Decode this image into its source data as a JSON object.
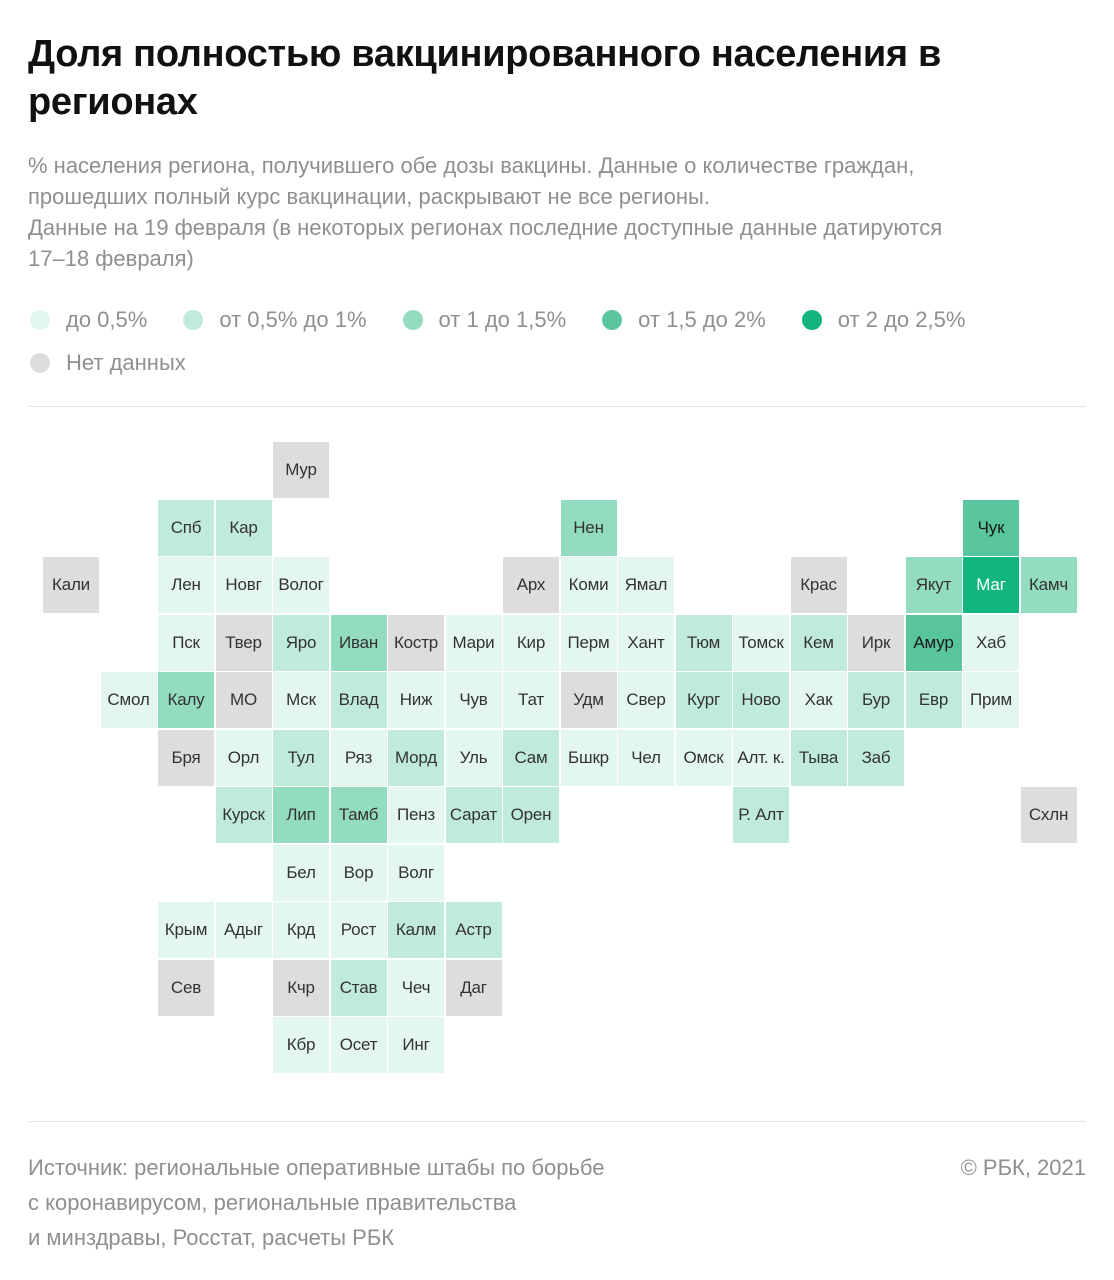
{
  "header": {
    "title": "Доля полностью вакцинированного населения в регионах",
    "subtitle_lines": [
      "% населения региона, получившего обе дозы вакцины. Данные о количестве граждан,",
      "прошедших полный курс вакцинации, раскрывают не все регионы.",
      "Данные на 19 февраля (в некоторых регионах последние доступные данные датируются",
      "17–18 февраля)"
    ]
  },
  "legend": {
    "items": [
      {
        "key": "c1",
        "label": "до 0,5%",
        "color": "#e3f6ef"
      },
      {
        "key": "c2",
        "label": "от 0,5% до 1%",
        "color": "#c0ebda"
      },
      {
        "key": "c3",
        "label": "от 1 до 1,5%",
        "color": "#94dcc0"
      },
      {
        "key": "c4",
        "label": "от 1,5 до 2%",
        "color": "#58c59c"
      },
      {
        "key": "c5",
        "label": "от 2 до 2,5%",
        "color": "#13b57f"
      },
      {
        "key": "na",
        "label": "Нет данных",
        "color": "#dddddd"
      }
    ]
  },
  "chart_data": {
    "type": "heatmap",
    "categories": [
      "до 0,5%",
      "от 0,5% до 1%",
      "от 1 до 1,5%",
      "от 1,5 до 2%",
      "от 2 до 2,5%",
      "Нет данных"
    ],
    "regions": [
      {
        "label": "Мур",
        "col": 5,
        "row": 0,
        "cat": "na"
      },
      {
        "label": "Спб",
        "col": 3,
        "row": 1,
        "cat": "c2"
      },
      {
        "label": "Кар",
        "col": 4,
        "row": 1,
        "cat": "c2"
      },
      {
        "label": "Нен",
        "col": 10,
        "row": 1,
        "cat": "c3"
      },
      {
        "label": "Чук",
        "col": 17,
        "row": 1,
        "cat": "c4"
      },
      {
        "label": "Кали",
        "col": 1,
        "row": 2,
        "cat": "na"
      },
      {
        "label": "Лен",
        "col": 3,
        "row": 2,
        "cat": "c1"
      },
      {
        "label": "Новг",
        "col": 4,
        "row": 2,
        "cat": "c1"
      },
      {
        "label": "Волог",
        "col": 5,
        "row": 2,
        "cat": "c1"
      },
      {
        "label": "Арх",
        "col": 9,
        "row": 2,
        "cat": "na"
      },
      {
        "label": "Коми",
        "col": 10,
        "row": 2,
        "cat": "c1"
      },
      {
        "label": "Ямал",
        "col": 11,
        "row": 2,
        "cat": "c1"
      },
      {
        "label": "Крас",
        "col": 14,
        "row": 2,
        "cat": "na"
      },
      {
        "label": "Якут",
        "col": 16,
        "row": 2,
        "cat": "c3"
      },
      {
        "label": "Маг",
        "col": 17,
        "row": 2,
        "cat": "c5"
      },
      {
        "label": "Камч",
        "col": 18,
        "row": 2,
        "cat": "c3"
      },
      {
        "label": "Пск",
        "col": 3,
        "row": 3,
        "cat": "c1"
      },
      {
        "label": "Твер",
        "col": 4,
        "row": 3,
        "cat": "na"
      },
      {
        "label": "Яро",
        "col": 5,
        "row": 3,
        "cat": "c2"
      },
      {
        "label": "Иван",
        "col": 6,
        "row": 3,
        "cat": "c3"
      },
      {
        "label": "Костр",
        "col": 7,
        "row": 3,
        "cat": "na"
      },
      {
        "label": "Мари",
        "col": 8,
        "row": 3,
        "cat": "c1"
      },
      {
        "label": "Кир",
        "col": 9,
        "row": 3,
        "cat": "c1"
      },
      {
        "label": "Перм",
        "col": 10,
        "row": 3,
        "cat": "c1"
      },
      {
        "label": "Хант",
        "col": 11,
        "row": 3,
        "cat": "c1"
      },
      {
        "label": "Тюм",
        "col": 12,
        "row": 3,
        "cat": "c2"
      },
      {
        "label": "Томск",
        "col": 13,
        "row": 3,
        "cat": "c1"
      },
      {
        "label": "Кем",
        "col": 14,
        "row": 3,
        "cat": "c2"
      },
      {
        "label": "Ирк",
        "col": 15,
        "row": 3,
        "cat": "na"
      },
      {
        "label": "Амур",
        "col": 16,
        "row": 3,
        "cat": "c4"
      },
      {
        "label": "Хаб",
        "col": 17,
        "row": 3,
        "cat": "c1"
      },
      {
        "label": "Смол",
        "col": 2,
        "row": 4,
        "cat": "c1"
      },
      {
        "label": "Калу",
        "col": 3,
        "row": 4,
        "cat": "c3"
      },
      {
        "label": "МО",
        "col": 4,
        "row": 4,
        "cat": "na"
      },
      {
        "label": "Мск",
        "col": 5,
        "row": 4,
        "cat": "c1"
      },
      {
        "label": "Влад",
        "col": 6,
        "row": 4,
        "cat": "c2"
      },
      {
        "label": "Ниж",
        "col": 7,
        "row": 4,
        "cat": "c1"
      },
      {
        "label": "Чув",
        "col": 8,
        "row": 4,
        "cat": "c1"
      },
      {
        "label": "Тат",
        "col": 9,
        "row": 4,
        "cat": "c1"
      },
      {
        "label": "Удм",
        "col": 10,
        "row": 4,
        "cat": "na"
      },
      {
        "label": "Свер",
        "col": 11,
        "row": 4,
        "cat": "c1"
      },
      {
        "label": "Кург",
        "col": 12,
        "row": 4,
        "cat": "c2"
      },
      {
        "label": "Ново",
        "col": 13,
        "row": 4,
        "cat": "c2"
      },
      {
        "label": "Хак",
        "col": 14,
        "row": 4,
        "cat": "c1"
      },
      {
        "label": "Бур",
        "col": 15,
        "row": 4,
        "cat": "c2"
      },
      {
        "label": "Евр",
        "col": 16,
        "row": 4,
        "cat": "c2"
      },
      {
        "label": "Прим",
        "col": 17,
        "row": 4,
        "cat": "c1"
      },
      {
        "label": "Бря",
        "col": 3,
        "row": 5,
        "cat": "na"
      },
      {
        "label": "Орл",
        "col": 4,
        "row": 5,
        "cat": "c1"
      },
      {
        "label": "Тул",
        "col": 5,
        "row": 5,
        "cat": "c2"
      },
      {
        "label": "Ряз",
        "col": 6,
        "row": 5,
        "cat": "c1"
      },
      {
        "label": "Морд",
        "col": 7,
        "row": 5,
        "cat": "c2"
      },
      {
        "label": "Уль",
        "col": 8,
        "row": 5,
        "cat": "c1"
      },
      {
        "label": "Сам",
        "col": 9,
        "row": 5,
        "cat": "c2"
      },
      {
        "label": "Бшкр",
        "col": 10,
        "row": 5,
        "cat": "c1"
      },
      {
        "label": "Чел",
        "col": 11,
        "row": 5,
        "cat": "c1"
      },
      {
        "label": "Омск",
        "col": 12,
        "row": 5,
        "cat": "c1"
      },
      {
        "label": "Алт. к.",
        "col": 13,
        "row": 5,
        "cat": "c1"
      },
      {
        "label": "Тыва",
        "col": 14,
        "row": 5,
        "cat": "c2"
      },
      {
        "label": "Заб",
        "col": 15,
        "row": 5,
        "cat": "c2"
      },
      {
        "label": "Курск",
        "col": 4,
        "row": 6,
        "cat": "c2"
      },
      {
        "label": "Лип",
        "col": 5,
        "row": 6,
        "cat": "c3"
      },
      {
        "label": "Тамб",
        "col": 6,
        "row": 6,
        "cat": "c3"
      },
      {
        "label": "Пенз",
        "col": 7,
        "row": 6,
        "cat": "c1"
      },
      {
        "label": "Сарат",
        "col": 8,
        "row": 6,
        "cat": "c2"
      },
      {
        "label": "Орен",
        "col": 9,
        "row": 6,
        "cat": "c2"
      },
      {
        "label": "Р. Алт",
        "col": 13,
        "row": 6,
        "cat": "c2"
      },
      {
        "label": "Схлн",
        "col": 18,
        "row": 6,
        "cat": "na"
      },
      {
        "label": "Бел",
        "col": 5,
        "row": 7,
        "cat": "c1"
      },
      {
        "label": "Вор",
        "col": 6,
        "row": 7,
        "cat": "c1"
      },
      {
        "label": "Волг",
        "col": 7,
        "row": 7,
        "cat": "c1"
      },
      {
        "label": "Крым",
        "col": 3,
        "row": 8,
        "cat": "c1"
      },
      {
        "label": "Адыг",
        "col": 4,
        "row": 8,
        "cat": "c1"
      },
      {
        "label": "Крд",
        "col": 5,
        "row": 8,
        "cat": "c1"
      },
      {
        "label": "Рост",
        "col": 6,
        "row": 8,
        "cat": "c1"
      },
      {
        "label": "Калм",
        "col": 7,
        "row": 8,
        "cat": "c2"
      },
      {
        "label": "Астр",
        "col": 8,
        "row": 8,
        "cat": "c2"
      },
      {
        "label": "Сев",
        "col": 3,
        "row": 9,
        "cat": "na"
      },
      {
        "label": "Кчр",
        "col": 5,
        "row": 9,
        "cat": "na"
      },
      {
        "label": "Став",
        "col": 6,
        "row": 9,
        "cat": "c2"
      },
      {
        "label": "Чеч",
        "col": 7,
        "row": 9,
        "cat": "c1"
      },
      {
        "label": "Даг",
        "col": 8,
        "row": 9,
        "cat": "na"
      },
      {
        "label": "Кбр",
        "col": 5,
        "row": 10,
        "cat": "c1"
      },
      {
        "label": "Осет",
        "col": 6,
        "row": 10,
        "cat": "c1"
      },
      {
        "label": "Инг",
        "col": 7,
        "row": 10,
        "cat": "c1"
      }
    ]
  },
  "footer": {
    "source_lines": [
      "Источник:  региональные оперативные штабы по борьбе",
      "с коронавирусом, региональные правительства",
      "и минздравы, Росстат, расчеты РБК"
    ],
    "copyright": "©  РБК, 2021"
  }
}
